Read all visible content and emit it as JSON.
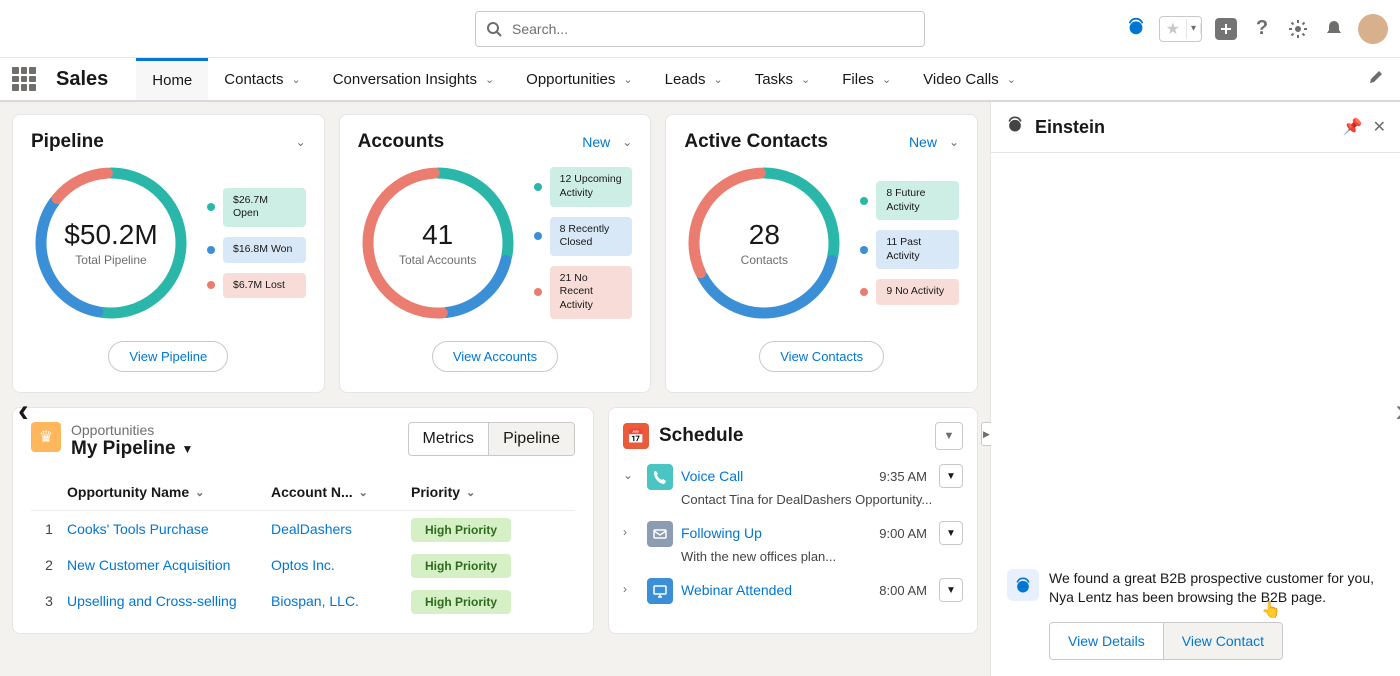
{
  "search": {
    "placeholder": "Search..."
  },
  "appName": "Sales",
  "navTabs": [
    "Home",
    "Contacts",
    "Conversation Insights",
    "Opportunities",
    "Leads",
    "Tasks",
    "Files",
    "Video Calls"
  ],
  "activeTab": "Home",
  "colors": {
    "teal": "#2ab7a9",
    "blue": "#3b8fd6",
    "coral": "#ea7d6f",
    "tealPill": "#cdeee5",
    "bluePill": "#d8e8f7",
    "coralPill": "#f7dcd7",
    "link": "#0176d3",
    "priorityBg": "#d6f0c5",
    "priorityText": "#2e6b1f"
  },
  "cards": {
    "pipeline": {
      "title": "Pipeline",
      "centerValue": "$50.2M",
      "centerLabel": "Total Pipeline",
      "segments": [
        {
          "label": "$26.7M Open",
          "pct": 53,
          "color": "#2ab7a9",
          "pill": "#cdeee5"
        },
        {
          "label": "$16.8M Won",
          "pct": 33,
          "color": "#3b8fd6",
          "pill": "#d8e8f7"
        },
        {
          "label": "$6.7M Lost",
          "pct": 14,
          "color": "#ea7d6f",
          "pill": "#f7dcd7"
        }
      ],
      "button": "View Pipeline"
    },
    "accounts": {
      "title": "Accounts",
      "newLabel": "New",
      "centerValue": "41",
      "centerLabel": "Total Accounts",
      "segments": [
        {
          "label": "12 Upcoming Activity",
          "pct": 29,
          "color": "#2ab7a9",
          "pill": "#cdeee5"
        },
        {
          "label": "8 Recently Closed",
          "pct": 20,
          "color": "#3b8fd6",
          "pill": "#d8e8f7"
        },
        {
          "label": "21 No Recent Activity",
          "pct": 51,
          "color": "#ea7d6f",
          "pill": "#f7dcd7"
        }
      ],
      "button": "View Accounts"
    },
    "contacts": {
      "title": "Active Contacts",
      "newLabel": "New",
      "centerValue": "28",
      "centerLabel": "Contacts",
      "segments": [
        {
          "label": "8 Future Activity",
          "pct": 29,
          "color": "#2ab7a9",
          "pill": "#cdeee5"
        },
        {
          "label": "11 Past Activity",
          "pct": 39,
          "color": "#3b8fd6",
          "pill": "#d8e8f7"
        },
        {
          "label": "9 No Activity",
          "pct": 32,
          "color": "#ea7d6f",
          "pill": "#f7dcd7"
        }
      ],
      "button": "View Contacts"
    }
  },
  "opportunities": {
    "subtitle": "Opportunities",
    "title": "My Pipeline",
    "toggle": {
      "left": "Metrics",
      "right": "Pipeline"
    },
    "columns": [
      "Opportunity Name",
      "Account N...",
      "Priority"
    ],
    "rows": [
      {
        "idx": "1",
        "name": "Cooks' Tools Purchase",
        "account": "DealDashers",
        "priority": "High Priority"
      },
      {
        "idx": "2",
        "name": "New Customer Acquisition",
        "account": "Optos Inc.",
        "priority": "High Priority"
      },
      {
        "idx": "3",
        "name": "Upselling and Cross-selling",
        "account": "Biospan, LLC.",
        "priority": "High Priority"
      }
    ]
  },
  "schedule": {
    "title": "Schedule",
    "items": [
      {
        "icon": "phone",
        "iconBg": "#4bc4c4",
        "title": "Voice Call",
        "time": "9:35 AM",
        "desc": "Contact Tina for DealDashers Opportunity...",
        "expanded": true
      },
      {
        "icon": "mail",
        "iconBg": "#8b9cb3",
        "title": "Following Up",
        "time": "9:00 AM",
        "desc": "With the new offices plan...",
        "expanded": false
      },
      {
        "icon": "webinar",
        "iconBg": "#3b8fd6",
        "title": "Webinar Attended",
        "time": "8:00 AM",
        "desc": "",
        "expanded": false
      }
    ]
  },
  "einstein": {
    "title": "Einstein",
    "message": "We found a great B2B prospective customer for you, Nya Lentz has been browsing the B2B page.",
    "actions": {
      "left": "View Details",
      "right": "View Contact"
    }
  }
}
